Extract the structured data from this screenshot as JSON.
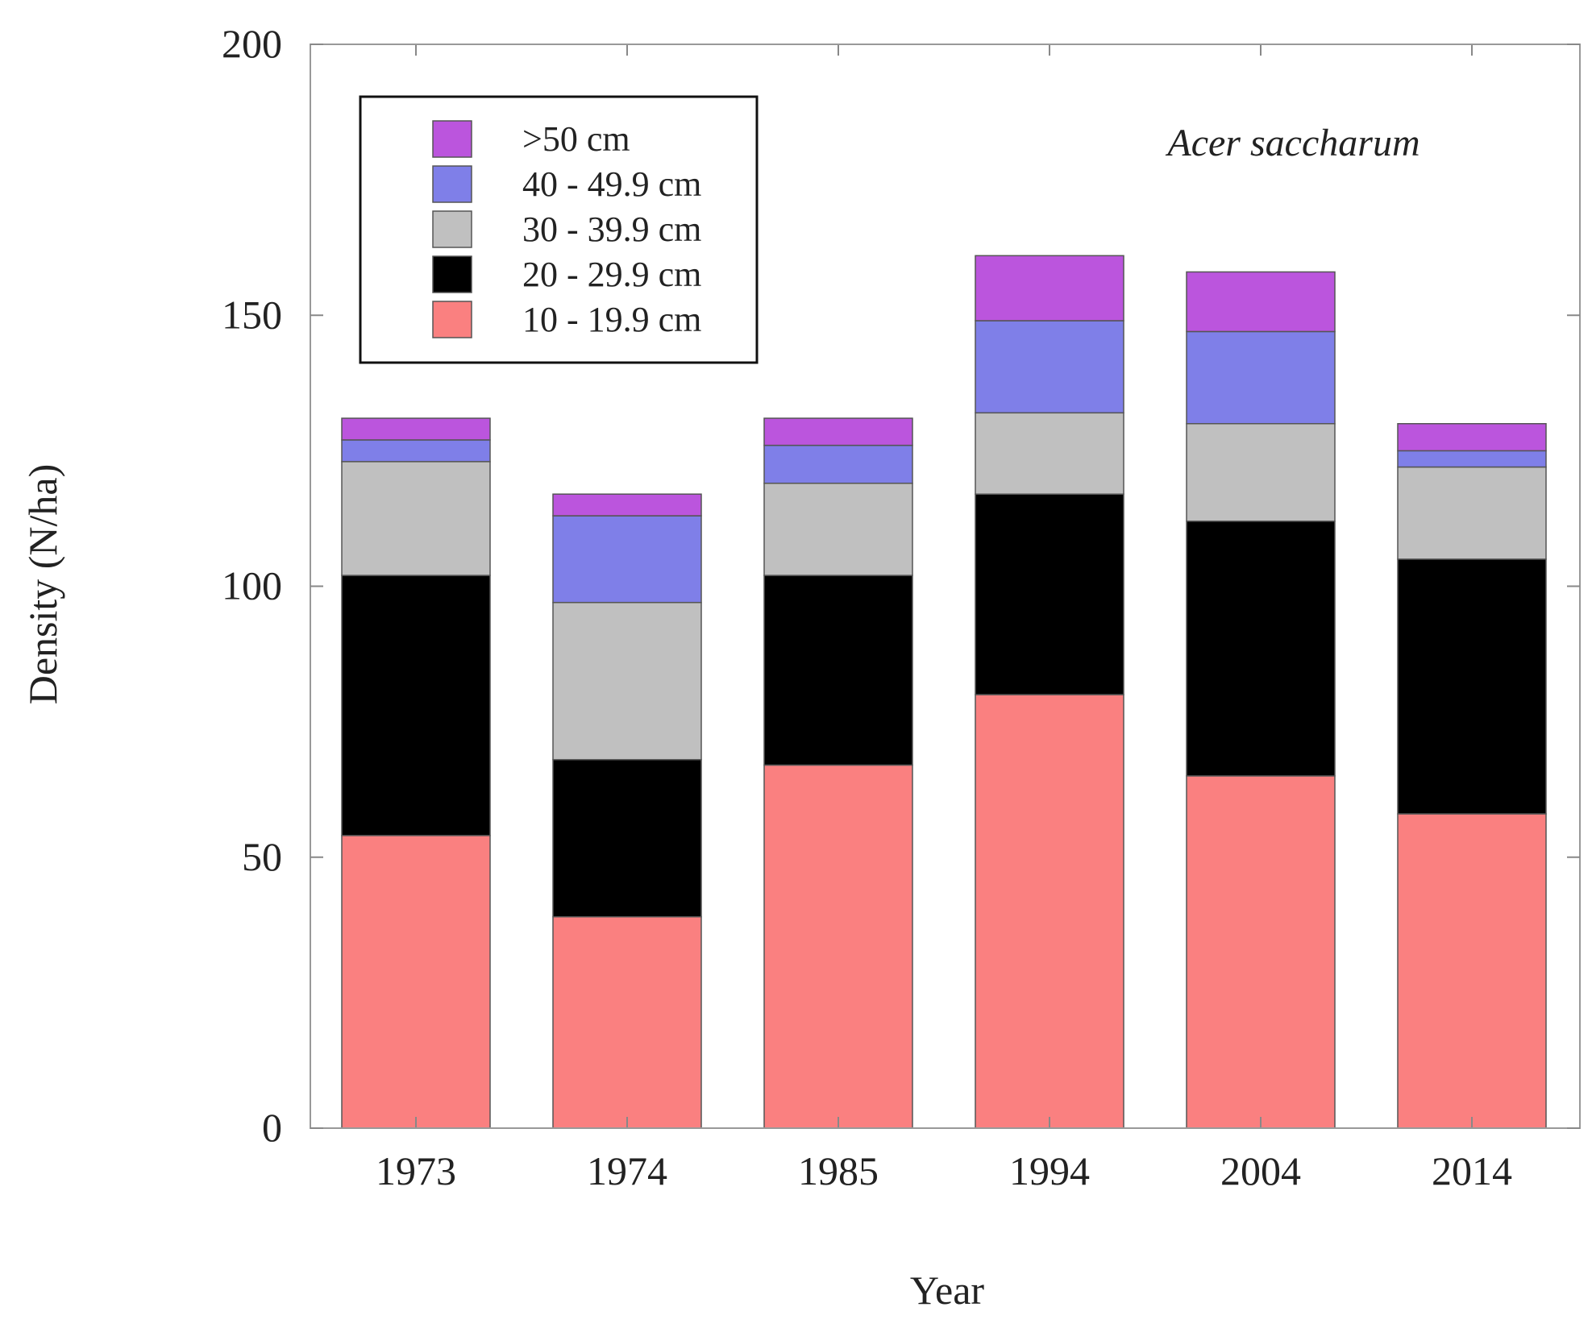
{
  "chart_data": {
    "type": "bar",
    "stacked": true,
    "title": "",
    "annotation": "Acer saccharum",
    "xlabel": "Year",
    "ylabel": "Density (N/ha)",
    "ylim": [
      0,
      200
    ],
    "yticks": [
      "0",
      "50",
      "100",
      "150",
      "200"
    ],
    "grid": false,
    "legend_position": "top-left",
    "categories": [
      "1973",
      "1974",
      "1985",
      "1994",
      "2004",
      "2014"
    ],
    "series": [
      {
        "name": "10 - 19.9 cm",
        "color": "#fa8080",
        "values": [
          54,
          39,
          67,
          80,
          65,
          58
        ]
      },
      {
        "name": "20 - 29.9 cm",
        "color": "#000000",
        "values": [
          48,
          29,
          35,
          37,
          47,
          47
        ]
      },
      {
        "name": "30 - 39.9 cm",
        "color": "#c0c0c0",
        "values": [
          21,
          29,
          17,
          15,
          18,
          17
        ]
      },
      {
        "name": "40 - 49.9 cm",
        "color": "#7f7fe8",
        "values": [
          4,
          16,
          7,
          17,
          17,
          3
        ]
      },
      {
        "name": ">50 cm",
        "color": "#bb55dd",
        "values": [
          4,
          4,
          5,
          12,
          11,
          5
        ]
      }
    ]
  }
}
